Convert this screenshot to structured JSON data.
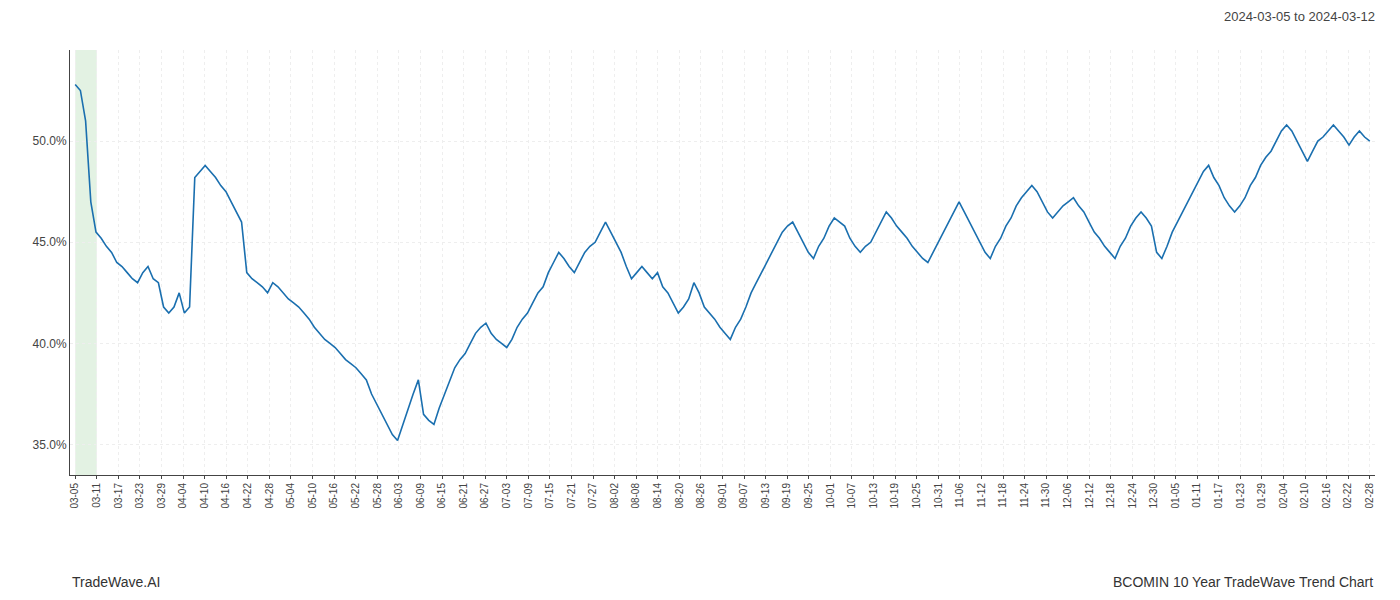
{
  "chart_data": {
    "type": "line",
    "title": "2024-03-05 to 2024-03-12",
    "annotations": [
      {
        "text": "TradeWave.AI"
      },
      {
        "text": "BCOMIN 10 Year TradeWave Trend Chart"
      }
    ],
    "color": "#1a6faf",
    "grid": true,
    "highlight": {
      "xlim": [
        0,
        4.15
      ],
      "color": "#c8e6c8"
    },
    "xlim": [
      -1,
      250
    ],
    "xticks": [
      {
        "value": 0,
        "label": "03-05"
      },
      {
        "value": 4.15,
        "label": "03-11"
      },
      {
        "value": 8.3,
        "label": "03-17"
      },
      {
        "value": 12.45,
        "label": "03-23"
      },
      {
        "value": 16.6,
        "label": "03-29"
      },
      {
        "value": 20.75,
        "label": "04-04"
      },
      {
        "value": 24.9,
        "label": "04-10"
      },
      {
        "value": 29.05,
        "label": "04-16"
      },
      {
        "value": 33.2,
        "label": "04-22"
      },
      {
        "value": 37.35,
        "label": "04-28"
      },
      {
        "value": 41.5,
        "label": "05-04"
      },
      {
        "value": 45.65,
        "label": "05-10"
      },
      {
        "value": 49.8,
        "label": "05-16"
      },
      {
        "value": 53.95,
        "label": "05-22"
      },
      {
        "value": 58.1,
        "label": "05-28"
      },
      {
        "value": 62.25,
        "label": "06-03"
      },
      {
        "value": 66.4,
        "label": "06-09"
      },
      {
        "value": 70.55,
        "label": "06-15"
      },
      {
        "value": 74.7,
        "label": "06-21"
      },
      {
        "value": 78.85,
        "label": "06-27"
      },
      {
        "value": 83,
        "label": "07-03"
      },
      {
        "value": 87.15,
        "label": "07-09"
      },
      {
        "value": 91.3,
        "label": "07-15"
      },
      {
        "value": 95.45,
        "label": "07-21"
      },
      {
        "value": 99.6,
        "label": "07-27"
      },
      {
        "value": 103.75,
        "label": "08-02"
      },
      {
        "value": 107.9,
        "label": "08-08"
      },
      {
        "value": 112.05,
        "label": "08-14"
      },
      {
        "value": 116.2,
        "label": "08-20"
      },
      {
        "value": 120.35,
        "label": "08-26"
      },
      {
        "value": 124.5,
        "label": "09-01"
      },
      {
        "value": 128.65,
        "label": "09-07"
      },
      {
        "value": 132.8,
        "label": "09-13"
      },
      {
        "value": 136.95,
        "label": "09-19"
      },
      {
        "value": 141.1,
        "label": "09-25"
      },
      {
        "value": 145.25,
        "label": "10-01"
      },
      {
        "value": 149.4,
        "label": "10-07"
      },
      {
        "value": 153.55,
        "label": "10-13"
      },
      {
        "value": 157.7,
        "label": "10-19"
      },
      {
        "value": 161.85,
        "label": "10-25"
      },
      {
        "value": 166,
        "label": "10-31"
      },
      {
        "value": 170.15,
        "label": "11-06"
      },
      {
        "value": 174.3,
        "label": "11-12"
      },
      {
        "value": 178.45,
        "label": "11-18"
      },
      {
        "value": 182.6,
        "label": "11-24"
      },
      {
        "value": 186.75,
        "label": "11-30"
      },
      {
        "value": 190.9,
        "label": "12-06"
      },
      {
        "value": 195.05,
        "label": "12-12"
      },
      {
        "value": 199.2,
        "label": "12-18"
      },
      {
        "value": 203.35,
        "label": "12-24"
      },
      {
        "value": 207.5,
        "label": "12-30"
      },
      {
        "value": 211.65,
        "label": "01-05"
      },
      {
        "value": 215.8,
        "label": "01-11"
      },
      {
        "value": 219.95,
        "label": "01-17"
      },
      {
        "value": 224.1,
        "label": "01-23"
      },
      {
        "value": 228.25,
        "label": "01-29"
      },
      {
        "value": 232.4,
        "label": "02-04"
      },
      {
        "value": 236.55,
        "label": "02-10"
      },
      {
        "value": 240.7,
        "label": "02-16"
      },
      {
        "value": 244.85,
        "label": "02-22"
      },
      {
        "value": 249,
        "label": "02-28"
      }
    ],
    "ylim": [
      33.5,
      54.5
    ],
    "yticks": [
      {
        "value": 35.0,
        "label": "35.0%"
      },
      {
        "value": 40.0,
        "label": "40.0%"
      },
      {
        "value": 45.0,
        "label": "45.0%"
      },
      {
        "value": 50.0,
        "label": "50.0%"
      }
    ],
    "values": [
      52.8,
      52.5,
      51.0,
      47.0,
      45.5,
      45.2,
      44.8,
      44.5,
      44.0,
      43.8,
      43.5,
      43.2,
      43.0,
      43.5,
      43.8,
      43.2,
      43.0,
      41.8,
      41.5,
      41.8,
      42.5,
      41.5,
      41.8,
      48.2,
      48.5,
      48.8,
      48.5,
      48.2,
      47.8,
      47.5,
      47.0,
      46.5,
      46.0,
      43.5,
      43.2,
      43.0,
      42.8,
      42.5,
      43.0,
      42.8,
      42.5,
      42.2,
      42.0,
      41.8,
      41.5,
      41.2,
      40.8,
      40.5,
      40.2,
      40.0,
      39.8,
      39.5,
      39.2,
      39.0,
      38.8,
      38.5,
      38.2,
      37.5,
      37.0,
      36.5,
      36.0,
      35.5,
      35.2,
      36.0,
      36.8,
      37.5,
      38.2,
      36.5,
      36.2,
      36.0,
      36.8,
      37.5,
      38.2,
      38.8,
      39.2,
      39.5,
      40.0,
      40.5,
      40.8,
      41.0,
      40.5,
      40.2,
      40.0,
      39.8,
      40.2,
      40.8,
      41.2,
      41.5,
      42.0,
      42.5,
      42.8,
      43.5,
      44.0,
      44.5,
      44.2,
      43.8,
      43.5,
      44.0,
      44.5,
      44.8,
      45.0,
      45.5,
      46.0,
      45.5,
      45.0,
      44.5,
      43.8,
      43.2,
      43.5,
      43.8,
      43.5,
      43.2,
      43.5,
      42.8,
      42.5,
      42.0,
      41.5,
      41.8,
      42.2,
      43.0,
      42.5,
      41.8,
      41.5,
      41.2,
      40.8,
      40.5,
      40.2,
      40.8,
      41.2,
      41.8,
      42.5,
      43.0,
      43.5,
      44.0,
      44.5,
      45.0,
      45.5,
      45.8,
      46.0,
      45.5,
      45.0,
      44.5,
      44.2,
      44.8,
      45.2,
      45.8,
      46.2,
      46.0,
      45.8,
      45.2,
      44.8,
      44.5,
      44.8,
      45.0,
      45.5,
      46.0,
      46.5,
      46.2,
      45.8,
      45.5,
      45.2,
      44.8,
      44.5,
      44.2,
      44.0,
      44.5,
      45.0,
      45.5,
      46.0,
      46.5,
      47.0,
      46.5,
      46.0,
      45.5,
      45.0,
      44.5,
      44.2,
      44.8,
      45.2,
      45.8,
      46.2,
      46.8,
      47.2,
      47.5,
      47.8,
      47.5,
      47.0,
      46.5,
      46.2,
      46.5,
      46.8,
      47.0,
      47.2,
      46.8,
      46.5,
      46.0,
      45.5,
      45.2,
      44.8,
      44.5,
      44.2,
      44.8,
      45.2,
      45.8,
      46.2,
      46.5,
      46.2,
      45.8,
      44.5,
      44.2,
      44.8,
      45.5,
      46.0,
      46.5,
      47.0,
      47.5,
      48.0,
      48.5,
      48.8,
      48.2,
      47.8,
      47.2,
      46.8,
      46.5,
      46.8,
      47.2,
      47.8,
      48.2,
      48.8,
      49.2,
      49.5,
      50.0,
      50.5,
      50.8,
      50.5,
      50.0,
      49.5,
      49.0,
      49.5,
      50.0,
      50.2,
      50.5,
      50.8,
      50.5,
      50.2,
      49.8,
      50.2,
      50.5,
      50.2,
      50.0
    ]
  }
}
